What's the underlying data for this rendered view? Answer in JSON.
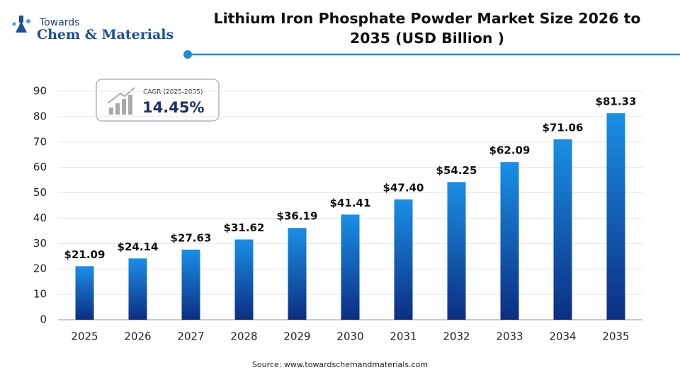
{
  "logo": {
    "top": "Towards",
    "name": "Chem & Materials"
  },
  "chart_data": {
    "type": "bar",
    "title": "Lithium Iron Phosphate Powder Market Size 2026 to 2035 (USD Billion )",
    "categories": [
      "2025",
      "2026",
      "2027",
      "2028",
      "2029",
      "2030",
      "2031",
      "2032",
      "2033",
      "2034",
      "2035"
    ],
    "values": [
      21.09,
      24.14,
      27.63,
      31.62,
      36.19,
      41.41,
      47.4,
      54.25,
      62.09,
      71.06,
      81.33
    ],
    "value_labels": [
      "$21.09",
      "$24.14",
      "$27.63",
      "$31.62",
      "$36.19",
      "$41.41",
      "$47.40",
      "$54.25",
      "$62.09",
      "$71.06",
      "$81.33"
    ],
    "color": "#1a8fe6",
    "ylim": [
      0,
      90
    ],
    "yticks": [
      0,
      10,
      20,
      30,
      40,
      50,
      60,
      70,
      80,
      90
    ],
    "grid": true,
    "annotation": {
      "label": "CAGR (2025-2035)",
      "value": "14.45%"
    },
    "source": "Source: www.towardschemandmaterials.com"
  }
}
